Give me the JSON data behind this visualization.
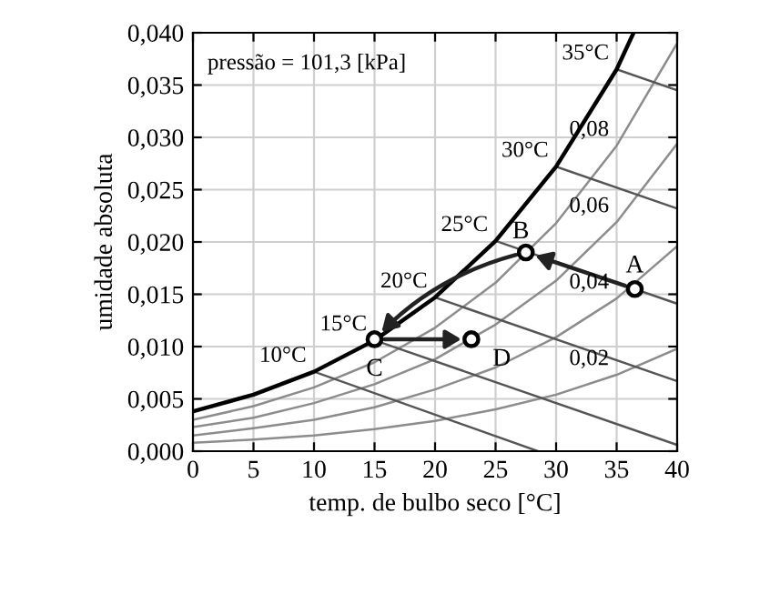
{
  "chart_data": {
    "type": "line",
    "xlabel": "temp. de bulbo seco [°C]",
    "ylabel": "umidade absoluta",
    "xlim": [
      0,
      40
    ],
    "ylim": [
      0,
      0.04
    ],
    "xticks": [
      0,
      5,
      10,
      15,
      20,
      25,
      30,
      35,
      40
    ],
    "yticks": [
      {
        "value": 0,
        "label": "0,000"
      },
      {
        "value": 0.005,
        "label": "0,005"
      },
      {
        "value": 0.01,
        "label": "0,010"
      },
      {
        "value": 0.015,
        "label": "0,015"
      },
      {
        "value": 0.02,
        "label": "0,020"
      },
      {
        "value": 0.025,
        "label": "0,025"
      },
      {
        "value": 0.03,
        "label": "0,030"
      },
      {
        "value": 0.035,
        "label": "0,035"
      },
      {
        "value": 0.04,
        "label": "0,040"
      }
    ],
    "grid": true,
    "legend": false,
    "marker": "none",
    "line_style": "solid",
    "series": [
      {
        "color": "#000000",
        "x": [
          0,
          5,
          10,
          15,
          20,
          25,
          30,
          35,
          36.4
        ],
        "values": [
          0.0038,
          0.0054,
          0.0076,
          0.0106,
          0.0147,
          0.0201,
          0.0272,
          0.0365,
          0.04
        ]
      },
      {
        "color": "#8c8c8c",
        "x": [
          0,
          5,
          10,
          15,
          20,
          25,
          30,
          35,
          40
        ],
        "values": [
          0.003,
          0.0043,
          0.0061,
          0.0085,
          0.0118,
          0.0161,
          0.0218,
          0.0292,
          0.039
        ]
      },
      {
        "color": "#8c8c8c",
        "x": [
          0,
          5,
          10,
          15,
          20,
          25,
          30,
          35,
          40
        ],
        "values": [
          0.0023,
          0.0032,
          0.0046,
          0.0064,
          0.0088,
          0.0121,
          0.0163,
          0.0219,
          0.0294
        ]
      },
      {
        "color": "#8c8c8c",
        "x": [
          0,
          5,
          10,
          15,
          20,
          25,
          30,
          35,
          40
        ],
        "values": [
          0.0015,
          0.0022,
          0.003,
          0.0042,
          0.0059,
          0.008,
          0.0109,
          0.0146,
          0.0196
        ]
      },
      {
        "color": "#8c8c8c",
        "x": [
          0,
          5,
          10,
          15,
          20,
          25,
          30,
          35,
          40
        ],
        "values": [
          0.0008,
          0.0011,
          0.0015,
          0.0021,
          0.0029,
          0.004,
          0.0054,
          0.0073,
          0.0098
        ]
      },
      {
        "color": "#555555",
        "x": [
          10,
          28.5
        ],
        "values": [
          0.0076,
          0
        ]
      },
      {
        "color": "#555555",
        "x": [
          15,
          40
        ],
        "values": [
          0.0106,
          0.0006
        ]
      },
      {
        "color": "#555555",
        "x": [
          20,
          40
        ],
        "values": [
          0.0147,
          0.0067
        ]
      },
      {
        "color": "#555555",
        "x": [
          25,
          40
        ],
        "values": [
          0.0201,
          0.0141
        ]
      },
      {
        "color": "#555555",
        "x": [
          30,
          40
        ],
        "values": [
          0.0272,
          0.0232
        ]
      },
      {
        "color": "#555555",
        "x": [
          35,
          40
        ],
        "values": [
          0.0365,
          0.0345
        ]
      },
      {
        "type": "scatter",
        "marker": "circle",
        "color": "#000000",
        "x": [
          36.5,
          27.5,
          15,
          23
        ],
        "values": [
          0.0155,
          0.019,
          0.0107,
          0.0107
        ],
        "value_labels": [
          "A",
          "B",
          "C",
          "D"
        ]
      }
    ],
    "annotations": [
      "pressão = 101,3 [kPa]",
      {
        "text": "10°C",
        "x": 10,
        "y": 0.0076
      },
      {
        "text": "15°C",
        "x": 15,
        "y": 0.0106
      },
      {
        "text": "20°C",
        "x": 20,
        "y": 0.0147
      },
      {
        "text": "25°C",
        "x": 25,
        "y": 0.0201
      },
      {
        "text": "30°C",
        "x": 30,
        "y": 0.0272
      },
      {
        "text": "35°C",
        "x": 35,
        "y": 0.0365
      },
      {
        "text": "0,02",
        "x": 35,
        "y": 0.0073
      },
      {
        "text": "0,04",
        "x": 35,
        "y": 0.0146
      },
      {
        "text": "0,06",
        "x": 35,
        "y": 0.0219
      },
      {
        "text": "0,08",
        "x": 35,
        "y": 0.0292
      }
    ]
  }
}
